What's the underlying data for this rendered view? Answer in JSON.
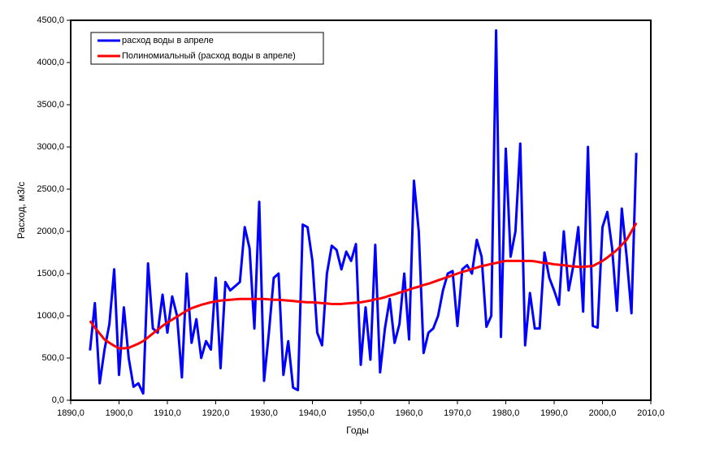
{
  "chart_data": {
    "type": "line",
    "x_label": "Годы",
    "y_label": "Расход, м3/с",
    "x": [
      1894,
      1895,
      1896,
      1897,
      1898,
      1899,
      1900,
      1901,
      1902,
      1903,
      1904,
      1905,
      1906,
      1907,
      1908,
      1909,
      1910,
      1911,
      1912,
      1913,
      1914,
      1915,
      1916,
      1917,
      1918,
      1919,
      1920,
      1921,
      1922,
      1923,
      1924,
      1925,
      1926,
      1927,
      1928,
      1929,
      1930,
      1931,
      1932,
      1933,
      1934,
      1935,
      1936,
      1937,
      1938,
      1939,
      1940,
      1941,
      1942,
      1943,
      1944,
      1945,
      1946,
      1947,
      1948,
      1949,
      1950,
      1951,
      1952,
      1953,
      1954,
      1955,
      1956,
      1957,
      1958,
      1959,
      1960,
      1961,
      1962,
      1963,
      1964,
      1965,
      1966,
      1967,
      1968,
      1969,
      1970,
      1971,
      1972,
      1973,
      1974,
      1975,
      1976,
      1977,
      1978,
      1979,
      1980,
      1981,
      1982,
      1983,
      1984,
      1985,
      1986,
      1987,
      1988,
      1989,
      1990,
      1991,
      1992,
      1993,
      1994,
      1995,
      1996,
      1997,
      1998,
      1999,
      2000,
      2001,
      2002,
      2003,
      2004,
      2005,
      2006,
      2007
    ],
    "series": [
      {
        "name": "расход воды в апреле",
        "color": "#0000ff",
        "values": [
          590,
          1150,
          200,
          600,
          900,
          1550,
          300,
          1100,
          500,
          160,
          200,
          80,
          1620,
          850,
          800,
          1250,
          800,
          1230,
          1000,
          270,
          1500,
          680,
          960,
          500,
          700,
          600,
          1450,
          380,
          1400,
          1300,
          1350,
          1400,
          2050,
          1800,
          850,
          2350,
          230,
          800,
          1450,
          1500,
          300,
          700,
          150,
          120,
          2080,
          2050,
          1650,
          800,
          650,
          1500,
          1830,
          1780,
          1550,
          1760,
          1650,
          1850,
          420,
          1100,
          480,
          1840,
          330,
          850,
          1200,
          680,
          900,
          1500,
          720,
          2600,
          2000,
          560,
          800,
          850,
          1000,
          1300,
          1500,
          1530,
          880,
          1550,
          1600,
          1500,
          1900,
          1700,
          870,
          1000,
          4380,
          750,
          2980,
          1700,
          2000,
          3040,
          650,
          1270,
          850,
          850,
          1750,
          1450,
          1300,
          1130,
          2000,
          1300,
          1600,
          2050,
          1050,
          3000,
          880,
          860,
          2050,
          2230,
          1800,
          1060,
          2270,
          1700,
          1030,
          2930
        ]
      },
      {
        "name": "Полиномиальный (расход воды в апреле)",
        "color": "#ff0000",
        "values": [
          940,
          860,
          790,
          720,
          680,
          645,
          615,
          615,
          620,
          645,
          670,
          700,
          745,
          790,
          835,
          880,
          920,
          955,
          990,
          1025,
          1060,
          1090,
          1110,
          1130,
          1145,
          1160,
          1170,
          1180,
          1185,
          1190,
          1195,
          1200,
          1200,
          1200,
          1200,
          1200,
          1200,
          1195,
          1190,
          1190,
          1185,
          1180,
          1175,
          1170,
          1165,
          1160,
          1160,
          1155,
          1150,
          1145,
          1140,
          1140,
          1140,
          1145,
          1150,
          1155,
          1160,
          1170,
          1180,
          1195,
          1205,
          1220,
          1240,
          1255,
          1275,
          1290,
          1310,
          1330,
          1345,
          1365,
          1380,
          1400,
          1420,
          1440,
          1460,
          1480,
          1500,
          1520,
          1535,
          1555,
          1570,
          1590,
          1600,
          1615,
          1625,
          1640,
          1650,
          1650,
          1650,
          1650,
          1650,
          1650,
          1645,
          1635,
          1625,
          1620,
          1610,
          1605,
          1600,
          1590,
          1585,
          1580,
          1580,
          1585,
          1590,
          1620,
          1650,
          1690,
          1735,
          1780,
          1840,
          1900,
          2000,
          2100
        ]
      }
    ],
    "xlim": [
      1890,
      2010
    ],
    "xticks": [
      {
        "value": 1890,
        "label": "1890,0"
      },
      {
        "value": 1900,
        "label": "1900,0"
      },
      {
        "value": 1910,
        "label": "1910,0"
      },
      {
        "value": 1920,
        "label": "1920,0"
      },
      {
        "value": 1930,
        "label": "1930,0"
      },
      {
        "value": 1940,
        "label": "1940,0"
      },
      {
        "value": 1950,
        "label": "1950,0"
      },
      {
        "value": 1960,
        "label": "1960,0"
      },
      {
        "value": 1970,
        "label": "1970,0"
      },
      {
        "value": 1980,
        "label": "1980,0"
      },
      {
        "value": 1990,
        "label": "1990,0"
      },
      {
        "value": 2000,
        "label": "2000,0"
      },
      {
        "value": 2010,
        "label": "2010,0"
      }
    ],
    "ylim": [
      0,
      4500
    ],
    "yticks": [
      {
        "value": 0,
        "label": "0,0"
      },
      {
        "value": 500,
        "label": "500,0"
      },
      {
        "value": 1000,
        "label": "1000,0"
      },
      {
        "value": 1500,
        "label": "1500,0"
      },
      {
        "value": 2000,
        "label": "2000,0"
      },
      {
        "value": 2500,
        "label": "2500,0"
      },
      {
        "value": 3000,
        "label": "3000,0"
      },
      {
        "value": 3500,
        "label": "3500,0"
      },
      {
        "value": 4000,
        "label": "4000,0"
      },
      {
        "value": 4500,
        "label": "4500,0"
      }
    ],
    "grid": false,
    "legend": "upper left"
  }
}
